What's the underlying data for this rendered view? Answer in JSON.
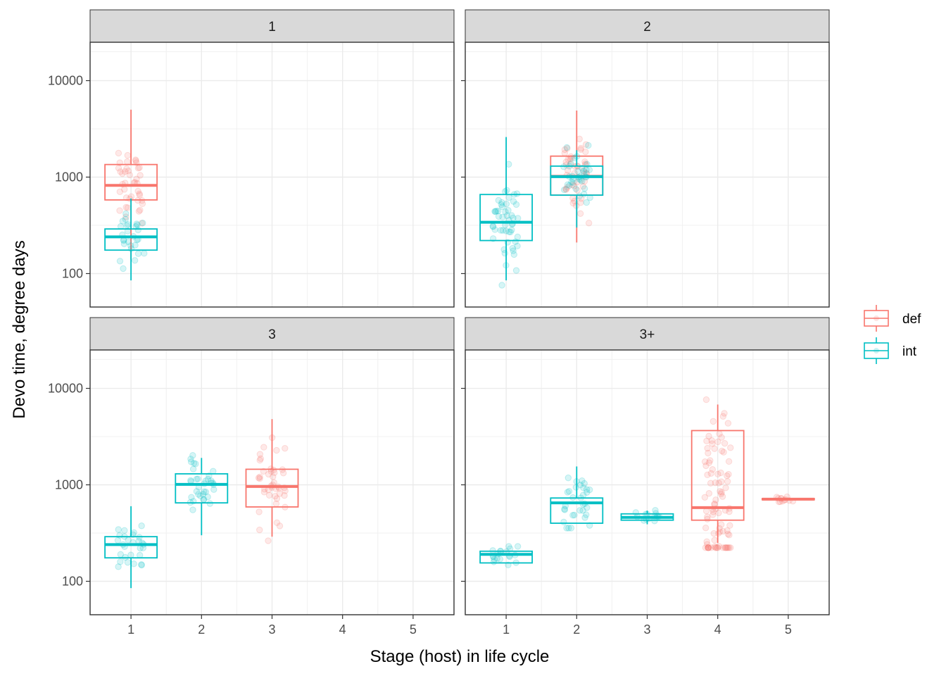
{
  "chart_data": {
    "type": "box",
    "xlabel": "Stage (host) in life cycle",
    "ylabel": "Devo time, degree days",
    "y_scale": "log10",
    "ylim": [
      45,
      25000
    ],
    "y_ticks": [
      100,
      1000,
      10000
    ],
    "y_tick_labels": [
      "100",
      "1000",
      "10000"
    ],
    "x_ticks": [
      1,
      2,
      3,
      4,
      5
    ],
    "x_tick_labels": [
      "1",
      "2",
      "3",
      "4",
      "5"
    ],
    "grid": true,
    "legend": {
      "position": "right",
      "entries": [
        {
          "name": "def",
          "color": "#F8766D"
        },
        {
          "name": "int",
          "color": "#00BFC4"
        }
      ]
    },
    "facets": [
      {
        "label": "1",
        "boxes": [
          {
            "stage": 1,
            "group": "def",
            "min": 140,
            "q1": 580,
            "median": 820,
            "q3": 1350,
            "max": 5000
          },
          {
            "stage": 1,
            "group": "int",
            "min": 85,
            "q1": 175,
            "median": 240,
            "q3": 290,
            "max": 600
          }
        ]
      },
      {
        "label": "2",
        "boxes": [
          {
            "stage": 1,
            "group": "int",
            "min": 85,
            "q1": 220,
            "median": 340,
            "q3": 660,
            "max": 2600
          },
          {
            "stage": 2,
            "group": "def",
            "min": 210,
            "q1": 650,
            "median": 1020,
            "q3": 1650,
            "max": 4900
          },
          {
            "stage": 2,
            "group": "int",
            "min": 300,
            "q1": 650,
            "median": 1010,
            "q3": 1300,
            "max": 1900
          }
        ]
      },
      {
        "label": "3",
        "boxes": [
          {
            "stage": 1,
            "group": "int",
            "min": 85,
            "q1": 175,
            "median": 240,
            "q3": 290,
            "max": 600
          },
          {
            "stage": 2,
            "group": "int",
            "min": 300,
            "q1": 650,
            "median": 1010,
            "q3": 1300,
            "max": 1900
          },
          {
            "stage": 3,
            "group": "def",
            "min": 290,
            "q1": 590,
            "median": 960,
            "q3": 1450,
            "max": 4800
          }
        ]
      },
      {
        "label": "3+",
        "boxes": [
          {
            "stage": 1,
            "group": "int",
            "min": 155,
            "q1": 155,
            "median": 190,
            "q3": 205,
            "max": 205
          },
          {
            "stage": 2,
            "group": "int",
            "min": 400,
            "q1": 400,
            "median": 650,
            "q3": 730,
            "max": 1550
          },
          {
            "stage": 3,
            "group": "int",
            "min": 390,
            "q1": 430,
            "median": 460,
            "q3": 500,
            "max": 540
          },
          {
            "stage": 4,
            "group": "def",
            "min": 250,
            "q1": 430,
            "median": 580,
            "q3": 3650,
            "max": 6800
          },
          {
            "stage": 5,
            "group": "def",
            "min": 700,
            "q1": 700,
            "median": 710,
            "q3": 720,
            "max": 720
          }
        ]
      }
    ]
  }
}
